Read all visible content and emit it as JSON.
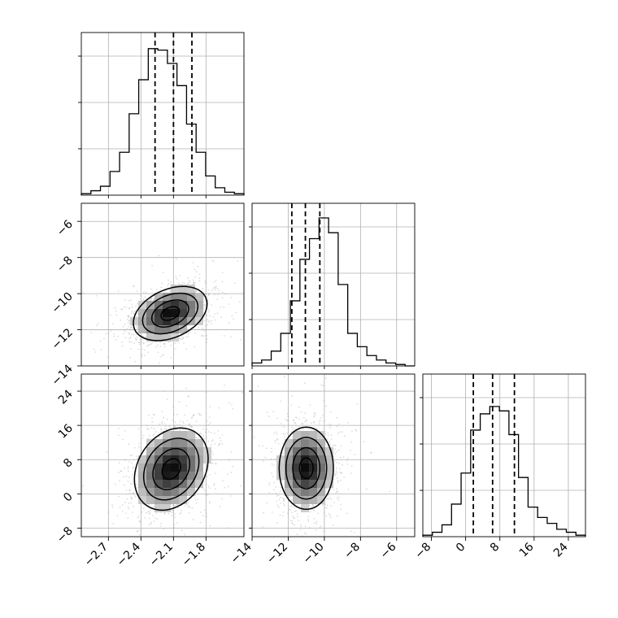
{
  "chart_data": {
    "type": "corner",
    "parameters": [
      {
        "axis_range": [
          -2.95,
          -1.45
        ],
        "ticks": [
          -2.7,
          -2.4,
          -2.1,
          -1.8
        ],
        "tick_labels": [
          "−2.7",
          "−2.4",
          "−2.1",
          "−1.8"
        ],
        "quantiles": [
          -2.27,
          -2.1,
          -1.93
        ],
        "center": -2.1,
        "sigma": 0.17
      },
      {
        "axis_range": [
          -14,
          -5.0
        ],
        "ticks": [
          -14,
          -12,
          -10,
          -8,
          -6
        ],
        "tick_labels": [
          "−14",
          "−12",
          "−10",
          "−8",
          "−6"
        ],
        "quantiles": [
          -11.8,
          -11.05,
          -10.25
        ],
        "center": -11.05,
        "sigma": 0.75
      },
      {
        "axis_range": [
          -10,
          28
        ],
        "ticks": [
          -8,
          0,
          8,
          16,
          24
        ],
        "tick_labels": [
          "−8",
          "0",
          "8",
          "16",
          "24"
        ],
        "quantiles": [
          1.8,
          6.3,
          11.4
        ],
        "center": 6.3,
        "sigma": 4.8
      }
    ],
    "histograms": [
      {
        "parameter": 0,
        "bin_counts": [
          0.01,
          0.03,
          0.06,
          0.16,
          0.29,
          0.55,
          0.78,
          0.99,
          0.98,
          0.89,
          0.74,
          0.48,
          0.29,
          0.13,
          0.05,
          0.02,
          0.01
        ]
      },
      {
        "parameter": 1,
        "bin_counts": [
          0.02,
          0.04,
          0.1,
          0.22,
          0.44,
          0.72,
          0.86,
          1.0,
          0.9,
          0.55,
          0.22,
          0.13,
          0.07,
          0.04,
          0.02,
          0.01,
          0.0
        ]
      },
      {
        "parameter": 2,
        "bin_counts": [
          0.01,
          0.03,
          0.08,
          0.22,
          0.43,
          0.72,
          0.83,
          0.88,
          0.85,
          0.69,
          0.4,
          0.2,
          0.13,
          0.09,
          0.05,
          0.03,
          0.01
        ]
      }
    ],
    "pair_panels": [
      {
        "x": 0,
        "y": 1,
        "center": [
          -2.13,
          -11.1
        ],
        "correlation": 0.35
      },
      {
        "x": 0,
        "y": 2,
        "center": [
          -2.12,
          5.8
        ],
        "correlation": 0.25
      },
      {
        "x": 1,
        "y": 2,
        "center": [
          -11.0,
          6.0
        ],
        "correlation": 0.0
      }
    ],
    "contour_levels": [
      0.5,
      1.0,
      1.5,
      2.0
    ],
    "grid": true
  }
}
